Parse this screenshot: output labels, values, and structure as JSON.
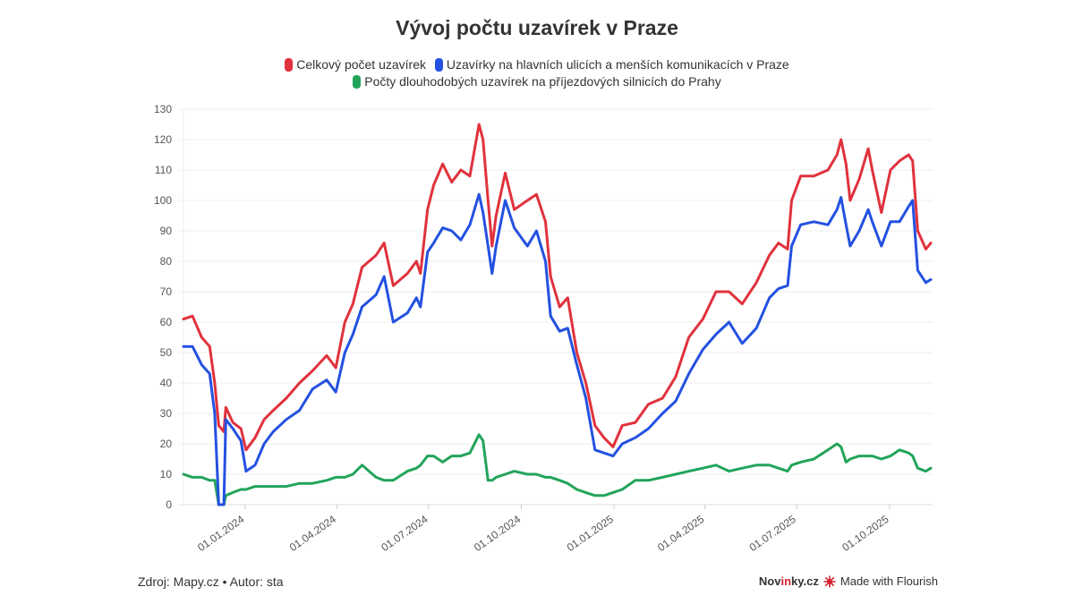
{
  "chart_data": {
    "type": "line",
    "title": "Vývoj počtu uzavírek v Praze",
    "xlabel": "",
    "ylabel": "",
    "ylim": [
      0,
      130
    ],
    "yticks": [
      "0",
      "10",
      "20",
      "30",
      "40",
      "50",
      "60",
      "70",
      "80",
      "90",
      "100",
      "110",
      "120",
      "130"
    ],
    "xticks": [
      {
        "date": "2024-01-01",
        "label": "01.01.2024"
      },
      {
        "date": "2024-04-01",
        "label": "01.04.2024"
      },
      {
        "date": "2024-07-01",
        "label": "01.07.2024"
      },
      {
        "date": "2024-10-01",
        "label": "01.10.2024"
      },
      {
        "date": "2025-01-01",
        "label": "01.01.2025"
      },
      {
        "date": "2025-04-01",
        "label": "01.04.2025"
      },
      {
        "date": "2025-07-01",
        "label": "01.07.2025"
      },
      {
        "date": "2025-10-01",
        "label": "01.10.2025"
      }
    ],
    "xlim": [
      "2023-11-01",
      "2025-11-11"
    ],
    "grid": true,
    "legend_position": "top",
    "x": [
      "2023-11-01",
      "2023-11-10",
      "2023-11-19",
      "2023-11-27",
      "2023-12-02",
      "2023-12-06",
      "2023-12-11",
      "2023-12-13",
      "2023-12-20",
      "2023-12-28",
      "2024-01-02",
      "2024-01-11",
      "2024-01-20",
      "2024-01-29",
      "2024-02-11",
      "2024-02-24",
      "2024-03-08",
      "2024-03-22",
      "2024-03-31",
      "2024-04-09",
      "2024-04-17",
      "2024-04-26",
      "2024-05-10",
      "2024-05-18",
      "2024-05-27",
      "2024-06-10",
      "2024-06-19",
      "2024-06-23",
      "2024-06-30",
      "2024-07-06",
      "2024-07-15",
      "2024-07-24",
      "2024-08-02",
      "2024-08-11",
      "2024-08-20",
      "2024-08-24",
      "2024-08-29",
      "2024-09-02",
      "2024-09-06",
      "2024-09-15",
      "2024-09-24",
      "2024-10-07",
      "2024-10-16",
      "2024-10-25",
      "2024-10-30",
      "2024-11-08",
      "2024-11-16",
      "2024-11-25",
      "2024-12-04",
      "2024-12-13",
      "2024-12-22",
      "2024-12-31",
      "2025-01-09",
      "2025-01-22",
      "2025-02-04",
      "2025-02-18",
      "2025-03-03",
      "2025-03-16",
      "2025-03-30",
      "2025-04-12",
      "2025-04-25",
      "2025-05-08",
      "2025-05-22",
      "2025-06-04",
      "2025-06-13",
      "2025-06-22",
      "2025-06-26",
      "2025-07-05",
      "2025-07-18",
      "2025-08-01",
      "2025-08-10",
      "2025-08-14",
      "2025-08-19",
      "2025-08-23",
      "2025-09-01",
      "2025-09-10",
      "2025-09-14",
      "2025-09-23",
      "2025-10-02",
      "2025-10-11",
      "2025-10-20",
      "2025-10-24",
      "2025-10-29",
      "2025-11-06",
      "2025-11-11"
    ],
    "series": [
      {
        "name": "Celkový počet uzavírek",
        "color": "#e0323c",
        "values": [
          61,
          62,
          55,
          52,
          40,
          26,
          24,
          32,
          27,
          25,
          18,
          22,
          28,
          31,
          35,
          40,
          44,
          49,
          45,
          60,
          66,
          78,
          82,
          86,
          72,
          76,
          80,
          76,
          97,
          105,
          112,
          106,
          110,
          108,
          125,
          120,
          100,
          85,
          95,
          109,
          97,
          100,
          102,
          93,
          75,
          65,
          68,
          50,
          40,
          26,
          22,
          19,
          26,
          27,
          33,
          35,
          42,
          55,
          61,
          70,
          70,
          66,
          73,
          82,
          86,
          84,
          100,
          108,
          108,
          110,
          115,
          120,
          112,
          100,
          107,
          117,
          110,
          96,
          110,
          113,
          115,
          113,
          90,
          84,
          86
        ]
      },
      {
        "name": "Uzavírky na hlavních ulicích a menších komunikacích v Praze",
        "color": "#2451e0",
        "values": [
          52,
          52,
          46,
          43,
          30,
          0,
          0,
          28,
          25,
          21,
          11,
          13,
          20,
          24,
          28,
          31,
          38,
          41,
          37,
          50,
          56,
          65,
          69,
          75,
          60,
          63,
          68,
          65,
          83,
          86,
          91,
          90,
          87,
          92,
          102,
          96,
          85,
          76,
          85,
          100,
          91,
          85,
          90,
          80,
          62,
          57,
          58,
          46,
          35,
          18,
          17,
          16,
          20,
          22,
          25,
          30,
          34,
          43,
          51,
          56,
          60,
          53,
          58,
          68,
          71,
          72,
          85,
          92,
          93,
          92,
          97,
          101,
          92,
          85,
          90,
          97,
          93,
          85,
          93,
          93,
          98,
          100,
          77,
          73,
          74
        ]
      },
      {
        "name": "Počty dlouhodobých uzavírek na příjezdových silnicích do Prahy",
        "color": "#22a45a",
        "values": [
          10,
          9,
          9,
          8,
          8,
          0,
          0,
          3,
          4,
          5,
          5,
          6,
          6,
          6,
          6,
          7,
          7,
          8,
          9,
          9,
          10,
          13,
          9,
          8,
          8,
          11,
          12,
          13,
          16,
          16,
          14,
          16,
          16,
          17,
          23,
          21,
          8,
          8,
          9,
          10,
          11,
          10,
          10,
          9,
          9,
          8,
          7,
          5,
          4,
          3,
          3,
          4,
          5,
          8,
          8,
          9,
          10,
          11,
          12,
          13,
          11,
          12,
          13,
          13,
          12,
          11,
          13,
          14,
          15,
          18,
          20,
          19,
          14,
          15,
          16,
          16,
          16,
          15,
          16,
          18,
          17,
          16,
          12,
          11,
          12
        ]
      }
    ]
  },
  "legend": {
    "items": [
      "Celkový počet uzavírek",
      "Uzavírky na hlavních ulicích a menších komunikacích v Praze",
      "Počty dlouhodobých uzavírek na příjezdových silnicích do Prahy"
    ]
  },
  "footer": {
    "source": "Zdroj: Mapy.cz • Autor: sta",
    "brand_prefix": "Nov",
    "brand_highlight": "in",
    "brand_suffix": "ky.cz",
    "flourish_label": "Made with Flourish",
    "flourish_color": "#d6202f"
  }
}
